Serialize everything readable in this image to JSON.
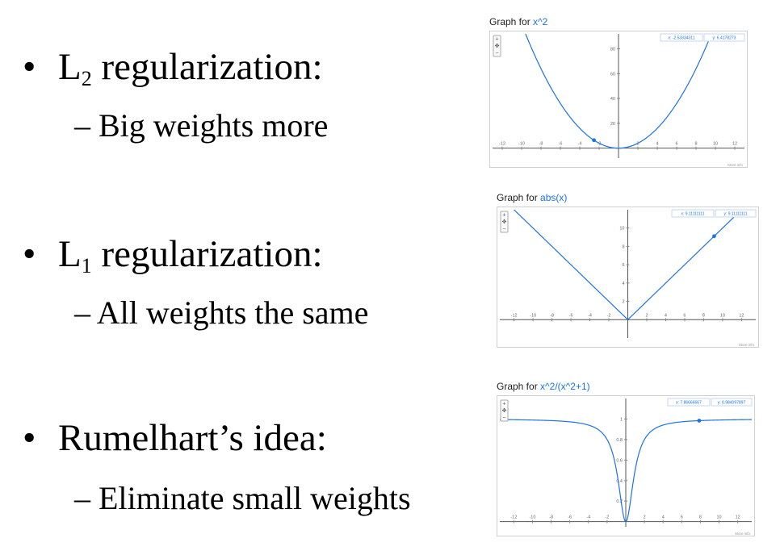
{
  "slide": {
    "bullets": [
      {
        "main": "L",
        "sub": "2",
        "rest": " regularization:",
        "point": "– Big weights more"
      },
      {
        "main": "L",
        "sub": "1",
        "rest": " regularization:",
        "point": "– All weights the same"
      },
      {
        "main": "Rumelhart’s idea:",
        "sub": "",
        "rest": "",
        "point": "– Eliminate small weights"
      }
    ],
    "bullet_glyph": "•"
  },
  "chart_data": [
    {
      "type": "line",
      "title_prefix": "Graph for ",
      "function": "x^2",
      "xlim": [
        -13,
        13
      ],
      "ylim": [
        -8,
        92
      ],
      "x_ticks": [
        -12,
        -10,
        -8,
        -6,
        -4,
        -2,
        2,
        4,
        6,
        8,
        10,
        12
      ],
      "y_ticks": [
        20,
        40,
        60,
        80
      ],
      "cursor": {
        "x": -2.53334311,
        "y": 6.4178273
      },
      "readout_x": "x: -2.53334311",
      "readout_y": "y: 6.4178273",
      "footer": "More info",
      "line_color": "#1a73e8"
    },
    {
      "type": "line",
      "title_prefix": "Graph for ",
      "function": "abs(x)",
      "xlim": [
        -13.5,
        13.5
      ],
      "ylim": [
        -2,
        12
      ],
      "x_ticks": [
        -12,
        -10,
        -8,
        -6,
        -4,
        -2,
        2,
        4,
        6,
        8,
        10,
        12
      ],
      "y_ticks": [
        2,
        4,
        6,
        8,
        10
      ],
      "cursor": {
        "x": 9.11111111,
        "y": 9.11111111
      },
      "readout_x": "x: 9.11111111",
      "readout_y": "y: 9.11111111",
      "footer": "More info",
      "line_color": "#1a73e8"
    },
    {
      "type": "line",
      "title_prefix": "Graph for ",
      "function": "x^2/(x^2+1)",
      "xlim": [
        -13.5,
        13.5
      ],
      "ylim": [
        -0.05,
        1.2
      ],
      "x_ticks": [
        -12,
        -10,
        -8,
        -6,
        -4,
        -2,
        2,
        4,
        6,
        8,
        10,
        12
      ],
      "y_ticks": [
        0.2,
        0.4,
        0.6,
        0.8,
        1
      ],
      "y_tick_labels": [
        "0.2",
        "0.4",
        "0.6",
        "0.8",
        "1"
      ],
      "cursor": {
        "x": 7.86666667,
        "y": 0.984097897
      },
      "readout_x": "x: 7.86666667",
      "readout_y": "y: 0.984097897",
      "footer": "More info",
      "line_color": "#1a73e8"
    }
  ]
}
